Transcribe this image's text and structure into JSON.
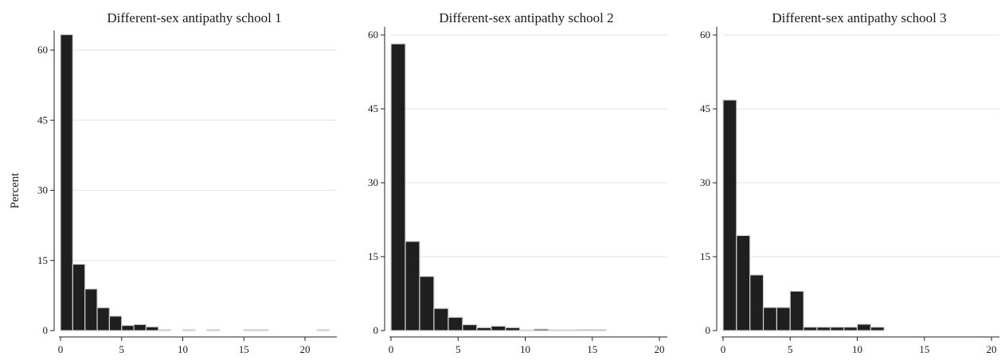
{
  "ylabel": "Percent",
  "colors": {
    "bar_fill": "#1f1f1f",
    "bar_edge": "#d0d0d0",
    "grid": "#e3e3e3",
    "axis": "#222222"
  },
  "chart_data": [
    {
      "type": "bar",
      "title": "Different-sex antipathy school 1",
      "ylabel": "Percent",
      "xlim": [
        0,
        22
      ],
      "ylim": [
        0,
        63.5
      ],
      "xticks": [
        0,
        5,
        10,
        15,
        20
      ],
      "yticks": [
        0,
        15,
        30,
        45,
        60
      ],
      "grid": true,
      "bin_width": 1,
      "bins": [
        {
          "x": 0,
          "value": 63.3
        },
        {
          "x": 1,
          "value": 14.2
        },
        {
          "x": 2,
          "value": 8.9
        },
        {
          "x": 3,
          "value": 4.9
        },
        {
          "x": 4,
          "value": 3.1
        },
        {
          "x": 5,
          "value": 1.1
        },
        {
          "x": 6,
          "value": 1.3
        },
        {
          "x": 7,
          "value": 0.8
        },
        {
          "x": 8,
          "value": 0.2
        },
        {
          "x": 10,
          "value": 0.2
        },
        {
          "x": 12,
          "value": 0.2
        },
        {
          "x": 15,
          "value": 0.2
        },
        {
          "x": 16,
          "value": 0.2
        },
        {
          "x": 21,
          "value": 0.2
        }
      ]
    },
    {
      "type": "bar",
      "title": "Different-sex antipathy school 2",
      "ylabel": "",
      "xlim": [
        0,
        20
      ],
      "ylim": [
        0,
        61
      ],
      "xticks": [
        0,
        5,
        10,
        15,
        20
      ],
      "yticks": [
        0,
        15,
        30,
        45,
        60
      ],
      "grid": true,
      "bin_width": 1.067,
      "bins": [
        {
          "x": 0,
          "value": 58.2
        },
        {
          "x": 1.067,
          "value": 18.1
        },
        {
          "x": 2.133,
          "value": 11.0
        },
        {
          "x": 3.2,
          "value": 4.5
        },
        {
          "x": 4.267,
          "value": 2.7
        },
        {
          "x": 5.333,
          "value": 1.2
        },
        {
          "x": 6.4,
          "value": 0.6
        },
        {
          "x": 7.467,
          "value": 0.9
        },
        {
          "x": 8.533,
          "value": 0.6
        },
        {
          "x": 9.6,
          "value": 0.1
        },
        {
          "x": 10.667,
          "value": 0.3
        },
        {
          "x": 11.733,
          "value": 0.1
        },
        {
          "x": 12.8,
          "value": 0.1
        },
        {
          "x": 13.867,
          "value": 0.2
        },
        {
          "x": 14.933,
          "value": 0.2
        }
      ]
    },
    {
      "type": "bar",
      "title": "Different-sex antipathy school 3",
      "ylabel": "",
      "xlim": [
        0,
        20
      ],
      "ylim": [
        0,
        61
      ],
      "xticks": [
        0,
        5,
        10,
        15,
        20
      ],
      "yticks": [
        0,
        15,
        30,
        45,
        60
      ],
      "grid": true,
      "bin_width": 1,
      "bins": [
        {
          "x": 0,
          "value": 46.8
        },
        {
          "x": 1,
          "value": 19.3
        },
        {
          "x": 2,
          "value": 11.3
        },
        {
          "x": 3,
          "value": 4.7
        },
        {
          "x": 4,
          "value": 4.7
        },
        {
          "x": 5,
          "value": 8.0
        },
        {
          "x": 6,
          "value": 0.7
        },
        {
          "x": 7,
          "value": 0.7
        },
        {
          "x": 8,
          "value": 0.7
        },
        {
          "x": 9,
          "value": 0.7
        },
        {
          "x": 10,
          "value": 1.3
        },
        {
          "x": 11,
          "value": 0.7
        }
      ]
    }
  ]
}
